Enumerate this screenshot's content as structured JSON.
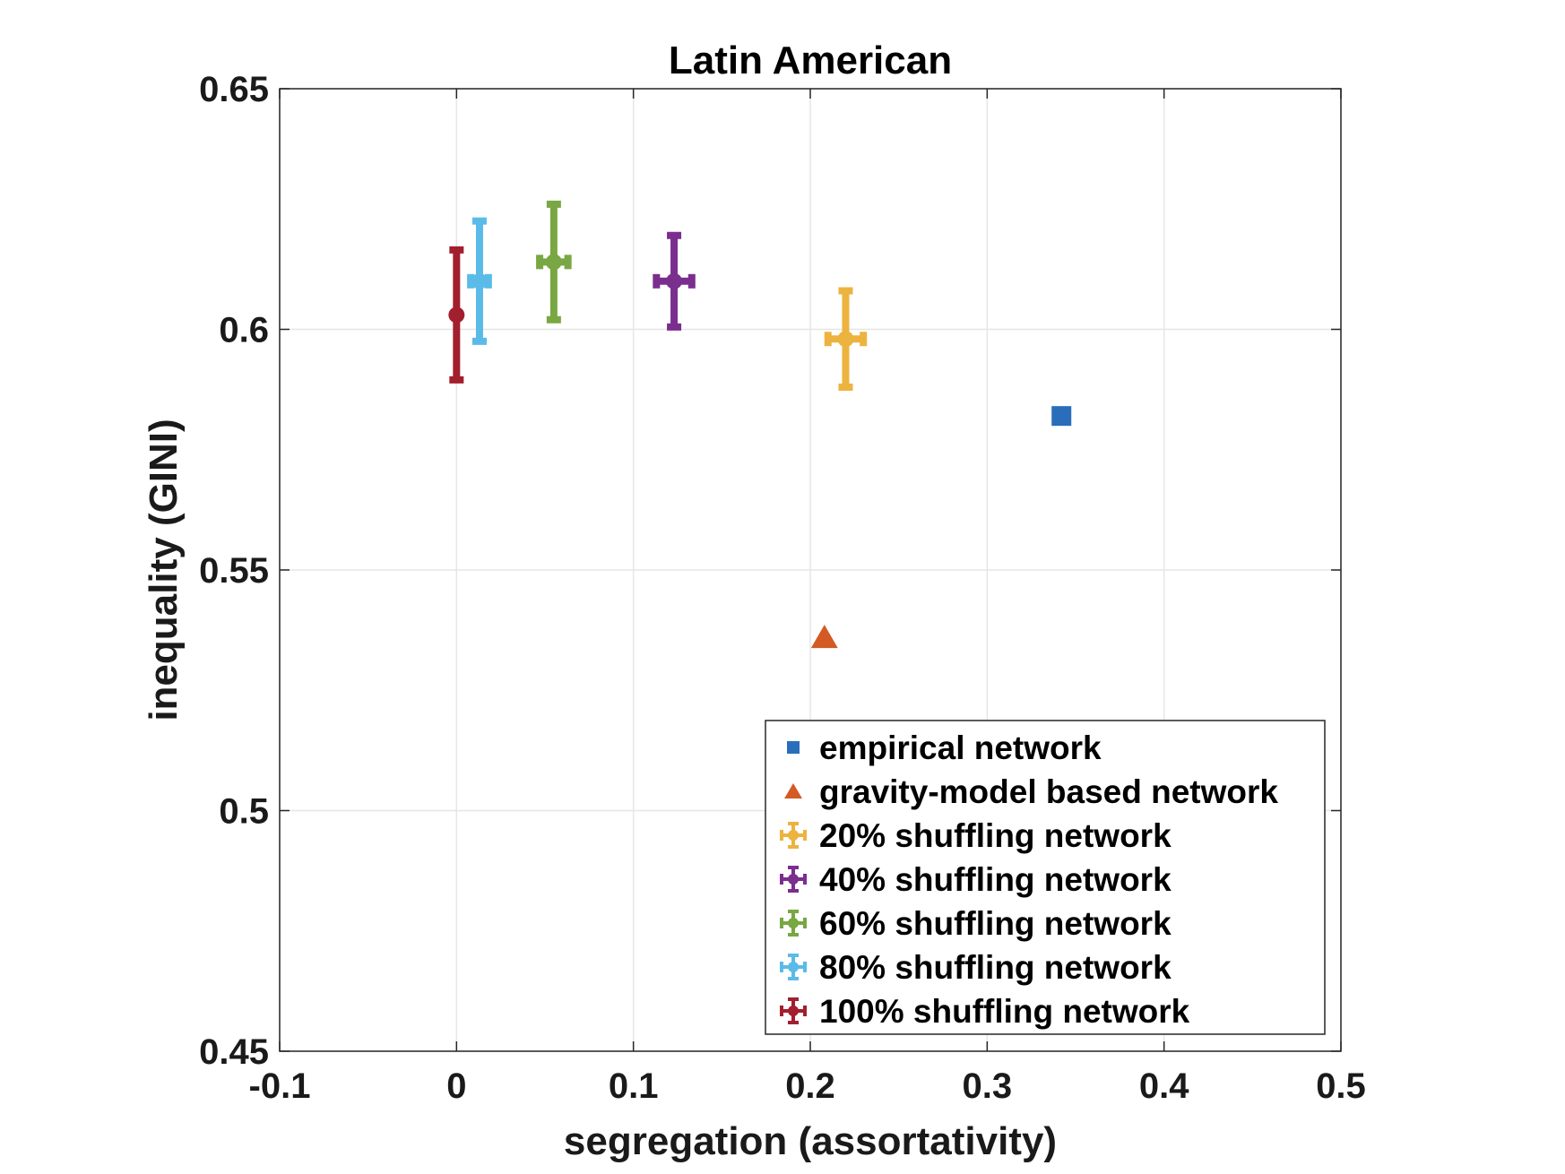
{
  "chart_data": {
    "type": "scatter",
    "title": "Latin American",
    "xlabel": "segregation (assortativity)",
    "ylabel": "inequality (GINI)",
    "xlim": [
      -0.1,
      0.5
    ],
    "ylim": [
      0.45,
      0.65
    ],
    "xticks": [
      -0.1,
      0,
      0.1,
      0.2,
      0.3,
      0.4,
      0.5
    ],
    "xtick_labels": [
      "-0.1",
      "0",
      "0.1",
      "0.2",
      "0.3",
      "0.4",
      "0.5"
    ],
    "yticks": [
      0.45,
      0.5,
      0.55,
      0.6,
      0.65
    ],
    "ytick_labels": [
      "0.45",
      "0.5",
      "0.55",
      "0.6",
      "0.65"
    ],
    "grid": true,
    "legend_position": "bottom-right",
    "series": [
      {
        "name": "empirical network",
        "marker": "square",
        "color": "#2a6ebb",
        "x": 0.342,
        "y": 0.582
      },
      {
        "name": "gravity-model based network",
        "marker": "triangle",
        "color": "#d35a24",
        "x": 0.208,
        "y": 0.536
      },
      {
        "name": "20% shuffling network",
        "marker": "errorbar",
        "color": "#ecb33f",
        "x": 0.22,
        "y": 0.598,
        "y_err": 0.01,
        "x_err": 0.01
      },
      {
        "name": "40% shuffling network",
        "marker": "errorbar",
        "color": "#7a2e8e",
        "x": 0.123,
        "y": 0.61,
        "y_err": 0.0095,
        "x_err": 0.01
      },
      {
        "name": "60% shuffling network",
        "marker": "errorbar",
        "color": "#78a743",
        "x": 0.055,
        "y": 0.614,
        "y_err": 0.012,
        "x_err": 0.008
      },
      {
        "name": "80% shuffling network",
        "marker": "errorbar",
        "color": "#5bbbe8",
        "x": 0.013,
        "y": 0.61,
        "y_err": 0.0125,
        "x_err": 0.005
      },
      {
        "name": "100% shuffling network",
        "marker": "errorbar",
        "color": "#a21f2e",
        "x": 0.0,
        "y": 0.603,
        "y_err": 0.0135,
        "x_err": 0.0003
      }
    ]
  }
}
